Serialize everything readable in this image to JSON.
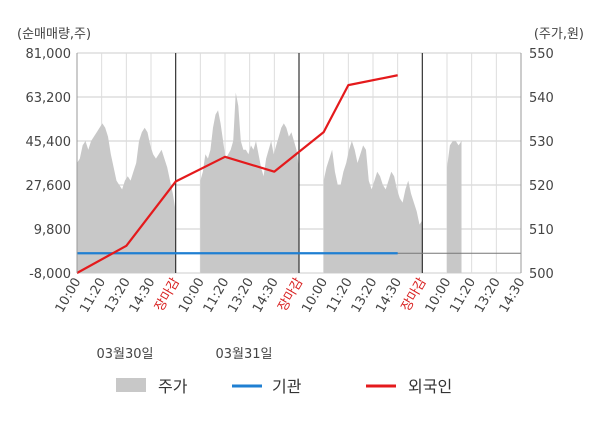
{
  "chart_data": {
    "type": "line",
    "left_axis_label": "(순매매량,주)",
    "right_axis_label": "(주가,원)",
    "y_left": {
      "range": [
        -8000,
        81000
      ],
      "ticks": [
        "81,000",
        "63,200",
        "45,400",
        "27,600",
        "9,800",
        "-8,000"
      ]
    },
    "y_right": {
      "range": [
        500,
        550
      ],
      "ticks": [
        "550",
        "540",
        "530",
        "520",
        "510",
        "500"
      ]
    },
    "x_ticks": [
      {
        "label": "10:00",
        "red": false
      },
      {
        "label": "11:20",
        "red": false
      },
      {
        "label": "13:20",
        "red": false
      },
      {
        "label": "14:30",
        "red": false
      },
      {
        "label": "장마감",
        "red": true
      },
      {
        "label": "10:00",
        "red": false
      },
      {
        "label": "11:20",
        "red": false
      },
      {
        "label": "13:20",
        "red": false
      },
      {
        "label": "14:30",
        "red": false
      },
      {
        "label": "장마감",
        "red": true
      },
      {
        "label": "10:00",
        "red": false
      },
      {
        "label": "11:20",
        "red": false
      },
      {
        "label": "13:20",
        "red": false
      },
      {
        "label": "14:30",
        "red": false
      },
      {
        "label": "장마감",
        "red": true
      },
      {
        "label": "10:00",
        "red": false
      },
      {
        "label": "11:20",
        "red": false
      },
      {
        "label": "13:20",
        "red": false
      },
      {
        "label": "14:30",
        "red": false
      }
    ],
    "dates": [
      "03월30일",
      "03월31일"
    ],
    "sessions": 4,
    "series": [
      {
        "name": "주가",
        "kind": "area",
        "axis": "right",
        "color": "#c8c8c8",
        "sessions": [
          [
            525,
            526,
            529,
            530,
            528,
            530,
            531,
            532,
            533,
            534,
            533,
            531,
            527,
            524,
            521,
            520,
            519,
            521,
            522,
            521,
            523,
            525,
            530,
            532,
            533,
            532,
            529,
            527,
            526,
            527,
            528,
            526,
            524,
            521,
            518,
            514
          ],
          [
            521,
            523,
            527,
            526,
            528,
            533,
            536,
            537,
            534,
            530,
            526,
            527,
            528,
            530,
            541,
            538,
            530,
            528,
            528,
            527,
            529,
            528,
            530,
            527,
            524,
            522,
            526,
            528,
            530,
            527,
            529,
            531,
            533,
            534,
            533,
            531,
            532,
            530,
            528,
            524
          ],
          [
            521,
            524,
            526,
            528,
            523,
            520,
            520,
            523,
            525,
            528,
            530,
            528,
            525,
            527,
            529,
            528,
            521,
            519,
            521,
            523,
            522,
            520,
            519,
            521,
            523,
            522,
            519,
            517,
            516,
            519,
            521,
            518,
            516,
            514,
            511,
            512
          ],
          [
            524,
            529,
            530,
            530,
            529,
            530
          ]
        ]
      },
      {
        "name": "기관",
        "kind": "line",
        "axis": "left",
        "color": "#1f7fd2",
        "points": [
          [
            0,
            0
          ],
          [
            13,
            0
          ]
        ]
      },
      {
        "name": "외국인",
        "kind": "line",
        "axis": "left",
        "color": "#e41a1c",
        "points": [
          [
            0,
            -8000
          ],
          [
            2,
            3000
          ],
          [
            4,
            29000
          ],
          [
            6,
            39000
          ],
          [
            8,
            33000
          ],
          [
            10,
            49000
          ],
          [
            11,
            68000
          ],
          [
            13,
            72000
          ]
        ]
      }
    ],
    "legend": [
      {
        "name": "주가",
        "kind": "area",
        "color": "#c8c8c8"
      },
      {
        "name": "기관",
        "kind": "line",
        "color": "#1f7fd2"
      },
      {
        "name": "외국인",
        "kind": "line",
        "color": "#e41a1c"
      }
    ],
    "colors": {
      "grid": "#cccccc",
      "axis": "#555555",
      "separator": "#333333"
    },
    "grid": true,
    "legend_position": "bottom"
  }
}
